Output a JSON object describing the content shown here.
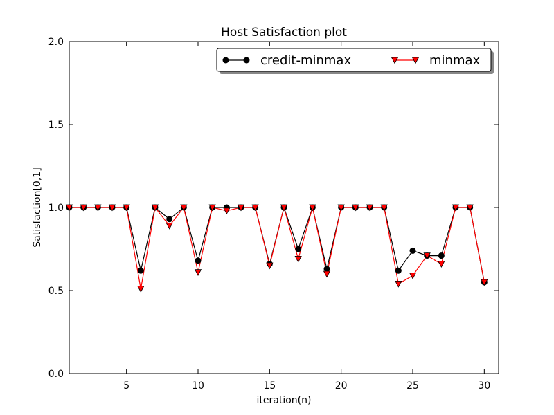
{
  "chart_data": {
    "type": "line",
    "title": "Host Satisfaction plot",
    "xlabel": "iteration(n)",
    "ylabel": "Satisfaction[0,1]",
    "xlim": [
      1,
      31
    ],
    "ylim": [
      0,
      2
    ],
    "xticks": [
      5,
      10,
      15,
      20,
      25,
      30
    ],
    "yticks": [
      "0.0",
      "0.5",
      "1.0",
      "1.5",
      "2.0"
    ],
    "grid": false,
    "legend_position": "top-right",
    "x": [
      1,
      2,
      3,
      4,
      5,
      6,
      7,
      8,
      9,
      10,
      11,
      12,
      13,
      14,
      15,
      16,
      17,
      18,
      19,
      20,
      21,
      22,
      23,
      24,
      25,
      26,
      27,
      28,
      29,
      30
    ],
    "series": [
      {
        "name": "credit-minmax",
        "color": "#000000",
        "marker": "circle",
        "values": [
          1.0,
          1.0,
          1.0,
          1.0,
          1.0,
          0.62,
          1.0,
          0.93,
          1.0,
          0.68,
          1.0,
          1.0,
          1.0,
          1.0,
          0.66,
          1.0,
          0.75,
          1.0,
          0.63,
          1.0,
          1.0,
          1.0,
          1.0,
          0.62,
          0.74,
          0.71,
          0.71,
          1.0,
          1.0,
          0.55
        ]
      },
      {
        "name": "minmax",
        "color": "#ff0000",
        "marker": "triangle-down",
        "values": [
          1.0,
          1.0,
          1.0,
          1.0,
          1.0,
          0.51,
          1.0,
          0.89,
          1.0,
          0.61,
          1.0,
          0.98,
          1.0,
          1.0,
          0.65,
          1.0,
          0.69,
          1.0,
          0.6,
          1.0,
          1.0,
          1.0,
          1.0,
          0.54,
          0.59,
          0.71,
          0.66,
          1.0,
          1.0,
          0.55
        ]
      }
    ]
  }
}
